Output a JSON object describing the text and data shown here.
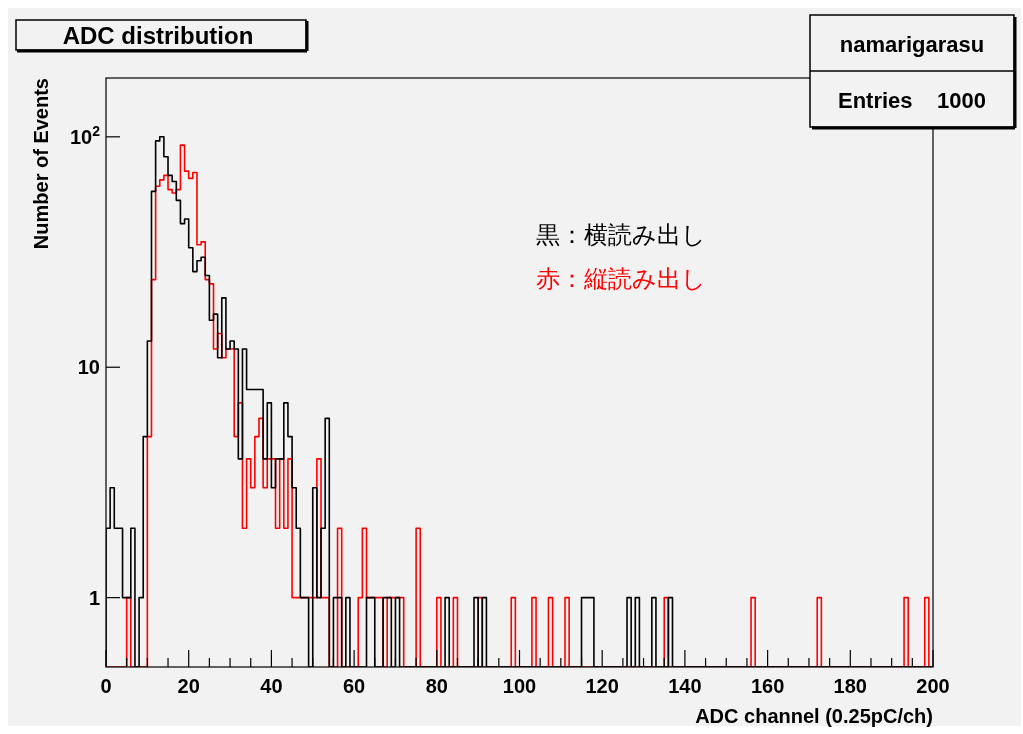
{
  "chart_data": {
    "type": "histogram",
    "title": "ADC distribution",
    "xlabel": "ADC channel (0.25pC/ch)",
    "ylabel": "Number of Events",
    "log": "y",
    "legend": "top right",
    "xlim": [
      0,
      200
    ],
    "ylim": [
      0.5,
      180
    ],
    "xticks": [
      0,
      {
        "value": 5,
        "label": null
      },
      {
        "value": 10,
        "label": null
      },
      {
        "value": 15,
        "label": null
      },
      20,
      {
        "value": 25,
        "label": null
      },
      {
        "value": 30,
        "label": null
      },
      {
        "value": 35,
        "label": null
      },
      40,
      {
        "value": 45,
        "label": null
      },
      {
        "value": 50,
        "label": null
      },
      {
        "value": 55,
        "label": null
      },
      60,
      {
        "value": 65,
        "label": null
      },
      {
        "value": 70,
        "label": null
      },
      {
        "value": 75,
        "label": null
      },
      80,
      {
        "value": 85,
        "label": null
      },
      {
        "value": 90,
        "label": null
      },
      {
        "value": 95,
        "label": null
      },
      100,
      {
        "value": 105,
        "label": null
      },
      {
        "value": 110,
        "label": null
      },
      {
        "value": 115,
        "label": null
      },
      120,
      {
        "value": 125,
        "label": null
      },
      {
        "value": 130,
        "label": null
      },
      {
        "value": 135,
        "label": null
      },
      140,
      {
        "value": 145,
        "label": null
      },
      {
        "value": 150,
        "label": null
      },
      {
        "value": 155,
        "label": null
      },
      160,
      {
        "value": 165,
        "label": null
      },
      {
        "value": 170,
        "label": null
      },
      {
        "value": 175,
        "label": null
      },
      180,
      {
        "value": 185,
        "label": null
      },
      {
        "value": 190,
        "label": null
      },
      {
        "value": 195,
        "label": null
      },
      200
    ],
    "yticks": [
      1,
      10,
      {
        "value": 100,
        "label": "10$^{2}$"
      }
    ],
    "annotations": [
      "namarigarasu",
      "Entries    1000"
    ],
    "bins": [
      0,
      1,
      2,
      3,
      4,
      5,
      6,
      7,
      8,
      9,
      10,
      11,
      12,
      13,
      14,
      15,
      16,
      17,
      18,
      19,
      20,
      21,
      22,
      23,
      24,
      25,
      26,
      27,
      28,
      29,
      30,
      31,
      32,
      33,
      34,
      35,
      36,
      37,
      38,
      39,
      40,
      41,
      42,
      43,
      44,
      45,
      46,
      47,
      48,
      49,
      50,
      51,
      52,
      53,
      54,
      55,
      56,
      57,
      58,
      59,
      60,
      61,
      62,
      63,
      64,
      65,
      66,
      67,
      68,
      69,
      70,
      71,
      72,
      73,
      74,
      75,
      76,
      77,
      78,
      79,
      80,
      81,
      82,
      83,
      84,
      85,
      86,
      87,
      88,
      89,
      90,
      91,
      92,
      93,
      94,
      95,
      96,
      97,
      98,
      99,
      100,
      101,
      102,
      103,
      104,
      105,
      106,
      107,
      108,
      109,
      110,
      111,
      112,
      113,
      114,
      115,
      116,
      117,
      118,
      119,
      120,
      121,
      122,
      123,
      124,
      125,
      126,
      127,
      128,
      129,
      130,
      131,
      132,
      133,
      134,
      135,
      136,
      137,
      138,
      139,
      140,
      141,
      142,
      143,
      144,
      145,
      146,
      147,
      148,
      149,
      150,
      151,
      152,
      153,
      154,
      155,
      156,
      157,
      158,
      159,
      160,
      161,
      162,
      163,
      164,
      165,
      166,
      167,
      168,
      169,
      170,
      171,
      172,
      173,
      174,
      175,
      176,
      177,
      178,
      179,
      180,
      181,
      182,
      183,
      184,
      185,
      186,
      187,
      188,
      189,
      190,
      191,
      192,
      193,
      194,
      195,
      196,
      197,
      198,
      199,
      200
    ],
    "series": [
      {
        "name": "黒：横読み出し",
        "color": "#000000",
        "values": [
          2,
          3,
          2,
          2,
          1,
          1,
          2,
          null,
          1,
          5,
          13,
          58,
          96,
          100,
          82,
          68,
          64,
          53,
          42,
          44,
          33,
          26,
          29,
          30,
          25,
          16,
          17,
          11,
          20,
          12,
          13,
          12,
          4,
          12,
          8,
          8,
          8,
          8,
          4,
          7,
          3,
          4,
          4,
          7,
          5,
          3,
          2,
          1,
          1,
          null,
          3,
          1,
          2,
          6,
          null,
          1,
          1,
          null,
          1,
          null,
          null,
          null,
          null,
          1,
          1,
          null,
          null,
          1,
          1,
          null,
          1,
          null,
          null,
          null,
          null,
          null,
          null,
          null,
          null,
          null,
          null,
          null,
          1,
          null,
          null,
          null,
          null,
          null,
          null,
          1,
          null,
          1,
          null,
          null,
          null,
          null,
          null,
          null,
          null,
          null,
          null,
          null,
          null,
          null,
          null,
          null,
          null,
          null,
          null,
          null,
          null,
          null,
          null,
          null,
          null,
          1,
          1,
          1,
          null,
          null,
          null,
          null,
          null,
          null,
          null,
          null,
          1,
          null,
          1,
          null,
          null,
          null,
          1,
          null,
          null,
          null,
          1,
          null,
          null,
          null,
          null,
          null,
          null,
          null,
          null,
          null,
          null,
          null,
          null,
          null,
          null,
          null,
          null,
          null,
          null,
          null,
          null,
          null,
          null,
          null,
          null,
          null,
          null,
          null,
          null,
          null,
          null,
          null,
          null,
          null,
          null,
          null,
          null,
          null,
          null,
          null,
          null,
          null,
          null,
          null,
          null,
          null,
          null,
          null,
          null,
          null,
          null,
          null,
          null,
          null,
          null,
          null,
          null,
          null,
          null,
          null,
          null,
          null,
          null,
          null
        ]
      },
      {
        "name": "赤：縦読み出し",
        "color": "#ff0000",
        "values": [
          null,
          null,
          null,
          null,
          null,
          1,
          null,
          null,
          null,
          null,
          5,
          24,
          61,
          65,
          68,
          59,
          57,
          59,
          92,
          71,
          66,
          70,
          34,
          35,
          24,
          23,
          12,
          14,
          11,
          12,
          12,
          5,
          7,
          2,
          4,
          3,
          5,
          6,
          3,
          4,
          4,
          2,
          4,
          2,
          4,
          1,
          1,
          1,
          1,
          1,
          1,
          4,
          1,
          1,
          null,
          null,
          2,
          null,
          null,
          null,
          null,
          1,
          2,
          1,
          1,
          1,
          1,
          null,
          1,
          1,
          1,
          1,
          null,
          null,
          null,
          2,
          null,
          null,
          null,
          null,
          1,
          null,
          null,
          null,
          1,
          null,
          null,
          null,
          null,
          null,
          1,
          null,
          null,
          null,
          null,
          null,
          null,
          null,
          1,
          null,
          null,
          null,
          null,
          1,
          null,
          null,
          null,
          1,
          null,
          null,
          null,
          1,
          null,
          null,
          null,
          null,
          null,
          null,
          null,
          null,
          null,
          null,
          null,
          null,
          null,
          null,
          null,
          null,
          null,
          null,
          null,
          null,
          null,
          null,
          null,
          1,
          null,
          null,
          null,
          null,
          null,
          null,
          null,
          null,
          null,
          null,
          null,
          null,
          null,
          null,
          null,
          null,
          null,
          null,
          null,
          null,
          1,
          null,
          null,
          null,
          null,
          null,
          null,
          null,
          null,
          null,
          null,
          null,
          null,
          null,
          null,
          null,
          1,
          null,
          null,
          null,
          null,
          null,
          null,
          null,
          null,
          null,
          null,
          null,
          null,
          null,
          null,
          null,
          null,
          null,
          null,
          null,
          null,
          1,
          null,
          null,
          null,
          null,
          1,
          null
        ]
      }
    ]
  }
}
